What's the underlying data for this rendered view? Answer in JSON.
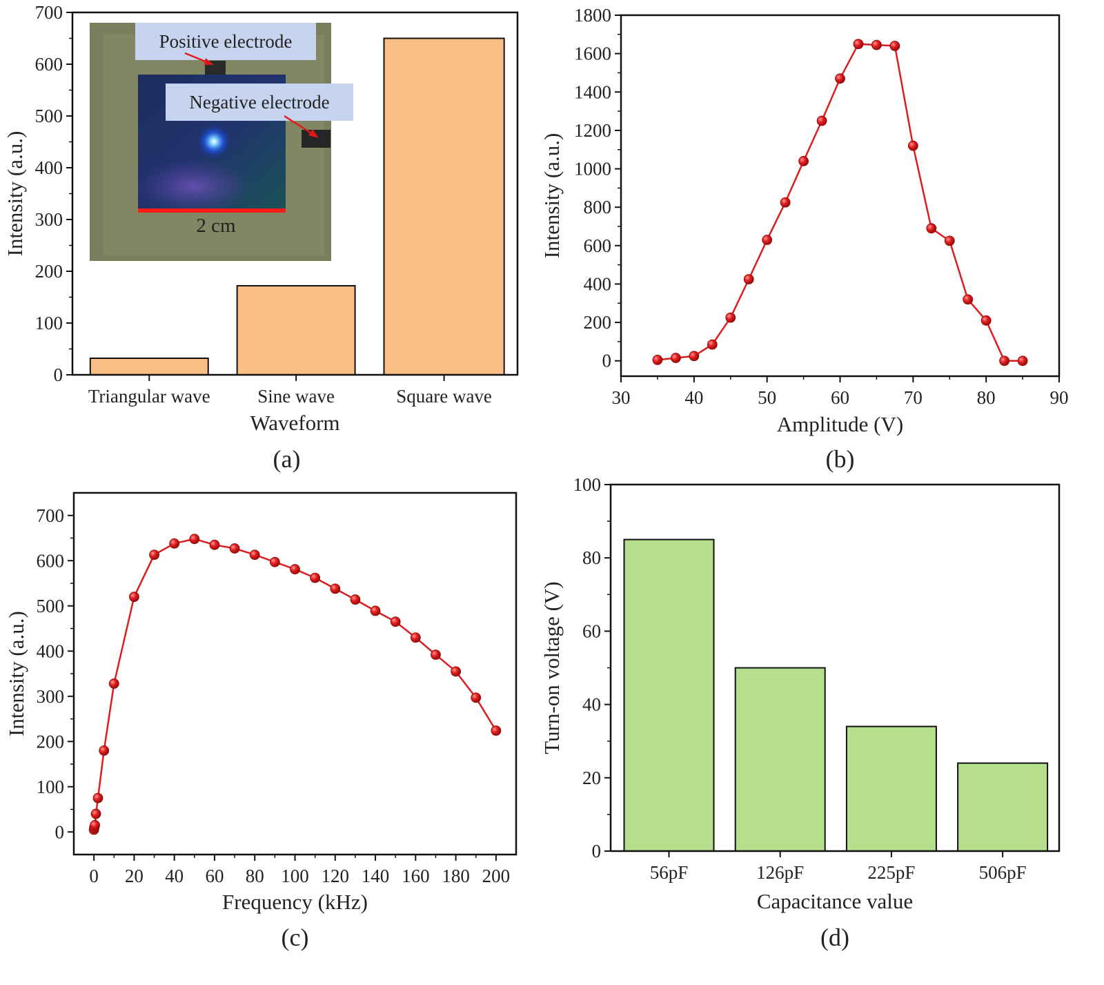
{
  "chart_data": [
    {
      "type": "bar",
      "panel_label": "(a)",
      "categories": [
        "Triangular wave",
        "Sine wave",
        "Square wave"
      ],
      "values": [
        32,
        172,
        650
      ],
      "xlabel": "Waveform",
      "ylabel": "Intensity (a.u.)",
      "ylim": [
        0,
        700
      ],
      "yticks": [
        0,
        100,
        200,
        300,
        400,
        500,
        600,
        700
      ],
      "bar_color": "#fbbf86",
      "inset_photo": {
        "labels": [
          "Positive electrode",
          "Negative electrode",
          "2 cm"
        ]
      }
    },
    {
      "type": "line",
      "panel_label": "(b)",
      "x": [
        35,
        37.5,
        40,
        42.5,
        45,
        47.5,
        50,
        52.5,
        55,
        57.5,
        60,
        62.5,
        65,
        67.5,
        70,
        72.5,
        75,
        77.5,
        80,
        82.5,
        85
      ],
      "y": [
        5,
        15,
        25,
        85,
        225,
        425,
        630,
        825,
        1040,
        1250,
        1470,
        1650,
        1645,
        1640,
        1120,
        690,
        625,
        320,
        210,
        0,
        0
      ],
      "xlabel": "Amplitude (V)",
      "ylabel": "Intensity (a.u.)",
      "xlim": [
        30,
        90
      ],
      "ylim": [
        -80,
        1800
      ],
      "xticks": [
        30,
        40,
        50,
        60,
        70,
        80,
        90
      ],
      "yticks": [
        0,
        200,
        400,
        600,
        800,
        1000,
        1200,
        1400,
        1600,
        1800
      ],
      "color": "#dd1d1d"
    },
    {
      "type": "line",
      "panel_label": "(c)",
      "x": [
        0,
        0.2,
        0.5,
        1,
        2,
        5,
        10,
        20,
        30,
        40,
        50,
        60,
        70,
        80,
        90,
        100,
        110,
        120,
        130,
        140,
        150,
        160,
        170,
        180,
        190,
        200
      ],
      "y": [
        5,
        10,
        15,
        40,
        75,
        180,
        328,
        520,
        613,
        638,
        648,
        635,
        627,
        613,
        597,
        581,
        562,
        538,
        514,
        489,
        465,
        430,
        392,
        355,
        297,
        224
      ],
      "xlabel": "Frequency (kHz)",
      "ylabel": "Intensity (a.u.)",
      "xlim": [
        -10,
        210
      ],
      "ylim": [
        -50,
        750
      ],
      "xticks": [
        0,
        20,
        40,
        60,
        80,
        100,
        120,
        140,
        160,
        180,
        200
      ],
      "yticks": [
        0,
        100,
        200,
        300,
        400,
        500,
        600,
        700
      ],
      "color": "#dd1d1d"
    },
    {
      "type": "bar",
      "panel_label": "(d)",
      "categories": [
        "56pF",
        "126pF",
        "225pF",
        "506pF"
      ],
      "values": [
        85,
        50,
        34,
        24
      ],
      "xlabel": "Capacitance value",
      "ylabel": "Turn-on voltage (V)",
      "ylim": [
        0,
        100
      ],
      "yticks": [
        0,
        20,
        40,
        60,
        80,
        100
      ],
      "bar_color": "#b5df8c"
    }
  ]
}
